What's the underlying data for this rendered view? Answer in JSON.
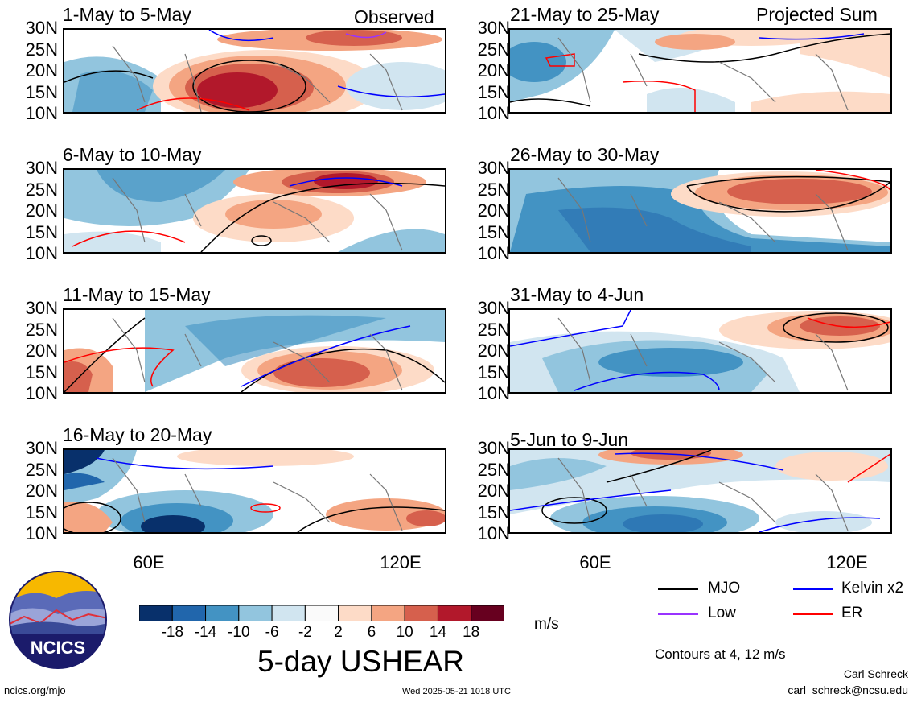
{
  "header": {
    "left_label": "Observed",
    "right_label": "Projected Sum"
  },
  "panels": [
    {
      "title": "1-May to 5-May",
      "column": "left"
    },
    {
      "title": "6-May to 10-May",
      "column": "left"
    },
    {
      "title": "11-May to 15-May",
      "column": "left"
    },
    {
      "title": "16-May to 20-May",
      "column": "left"
    },
    {
      "title": "21-May to 25-May",
      "column": "right"
    },
    {
      "title": "26-May to 30-May",
      "column": "right"
    },
    {
      "title": "31-May to 4-Jun",
      "column": "right"
    },
    {
      "title": "5-Jun to 9-Jun",
      "column": "right"
    }
  ],
  "lat_labels": [
    "30N",
    "25N",
    "20N",
    "15N",
    "10N"
  ],
  "lon_labels": [
    "60E",
    "120E"
  ],
  "colorbar": {
    "ticks": [
      "-18",
      "-14",
      "-10",
      "-6",
      "-2",
      "2",
      "6",
      "10",
      "14",
      "18"
    ],
    "unit": "m/s",
    "colors": [
      "#08306b",
      "#2166ac",
      "#4393c3",
      "#92c5de",
      "#d1e5f0",
      "#fafafa",
      "#fddbc7",
      "#f4a582",
      "#d6604d",
      "#b2182b",
      "#67001f"
    ]
  },
  "chart_title": "5-day USHEAR",
  "legend": {
    "items": [
      {
        "label": "MJO",
        "color": "#000000"
      },
      {
        "label": "Kelvin x2",
        "color": "#0000ff"
      },
      {
        "label": "Low",
        "color": "#9933ff"
      },
      {
        "label": "ER",
        "color": "#ff0000"
      }
    ],
    "contours_note": "Contours at 4, 12 m/s"
  },
  "footer": {
    "logo_text": "NCICS",
    "url": "ncics.org/mjo",
    "timestamp": "Wed 2025-05-21 1018 UTC",
    "author": "Carl Schreck",
    "email": "carl_schreck@ncsu.edu"
  }
}
